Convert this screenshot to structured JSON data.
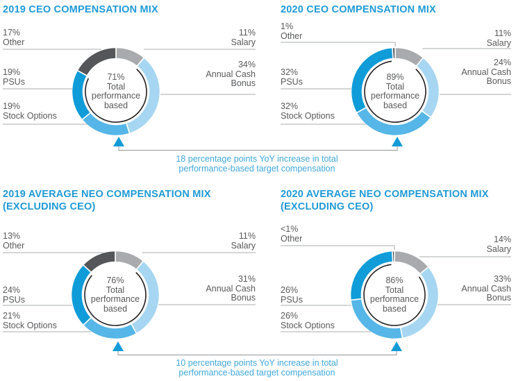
{
  "colors": {
    "background": "#ffffff",
    "title": "#1f9ad6",
    "label_text": "#58595b",
    "leader_line": "#a9abae",
    "bridge_line": "#939598",
    "bridge_text": "#41a8db",
    "arrow": "#149bd7",
    "inner_arc": "#231f20",
    "segment_gap": "#ffffff"
  },
  "segment_colors": {
    "salary": "#a8aaad",
    "annual_cash_bonus": "#a6d6f1",
    "stock_options": "#55b6e7",
    "psus": "#109cd8",
    "other": "#545659"
  },
  "chart_data": [
    {
      "type": "pie",
      "variant": "donut",
      "title": "2019 CEO COMPENSATION MIX",
      "title_lines": [
        "2019 CEO COMPENSATION MIX"
      ],
      "center_lines": [
        "71%",
        "Total",
        "performance",
        "based"
      ],
      "performance_based_pct": 71,
      "segments": [
        {
          "key": "salary",
          "pct_label": "11%",
          "value": 11,
          "label_lines": [
            "Salary"
          ]
        },
        {
          "key": "annual_cash_bonus",
          "pct_label": "34%",
          "value": 34,
          "label_lines": [
            "Annual Cash",
            "Bonus"
          ]
        },
        {
          "key": "stock_options",
          "pct_label": "19%",
          "value": 19,
          "label_lines": [
            "Stock Options"
          ]
        },
        {
          "key": "psus",
          "pct_label": "19%",
          "value": 19,
          "label_lines": [
            "PSUs"
          ]
        },
        {
          "key": "other",
          "pct_label": "17%",
          "value": 17,
          "label_lines": [
            "Other"
          ]
        }
      ]
    },
    {
      "type": "pie",
      "variant": "donut",
      "title": "2020 CEO COMPENSATION MIX",
      "title_lines": [
        "2020 CEO COMPENSATION MIX"
      ],
      "center_lines": [
        "89%",
        "Total",
        "performance",
        "based"
      ],
      "performance_based_pct": 89,
      "segments": [
        {
          "key": "salary",
          "pct_label": "11%",
          "value": 11,
          "label_lines": [
            "Salary"
          ]
        },
        {
          "key": "annual_cash_bonus",
          "pct_label": "24%",
          "value": 24,
          "label_lines": [
            "Annual Cash",
            "Bonus"
          ]
        },
        {
          "key": "stock_options",
          "pct_label": "32%",
          "value": 32,
          "label_lines": [
            "Stock Options"
          ]
        },
        {
          "key": "psus",
          "pct_label": "32%",
          "value": 32,
          "label_lines": [
            "PSUs"
          ]
        },
        {
          "key": "other",
          "pct_label": "1%",
          "value": 1,
          "label_lines": [
            "Other"
          ]
        }
      ]
    },
    {
      "type": "pie",
      "variant": "donut",
      "title": "2019 AVERAGE NEO COMPENSATION MIX (EXCLUDING CEO)",
      "title_lines": [
        "2019 AVERAGE NEO COMPENSATION MIX",
        "(EXCLUDING CEO)"
      ],
      "center_lines": [
        "76%",
        "Total",
        "performance",
        "based"
      ],
      "performance_based_pct": 76,
      "segments": [
        {
          "key": "salary",
          "pct_label": "11%",
          "value": 11,
          "label_lines": [
            "Salary"
          ]
        },
        {
          "key": "annual_cash_bonus",
          "pct_label": "31%",
          "value": 31,
          "label_lines": [
            "Annual Cash",
            "Bonus"
          ]
        },
        {
          "key": "stock_options",
          "pct_label": "21%",
          "value": 21,
          "label_lines": [
            "Stock Options"
          ]
        },
        {
          "key": "psus",
          "pct_label": "24%",
          "value": 24,
          "label_lines": [
            "PSUs"
          ]
        },
        {
          "key": "other",
          "pct_label": "13%",
          "value": 13,
          "label_lines": [
            "Other"
          ]
        }
      ]
    },
    {
      "type": "pie",
      "variant": "donut",
      "title": "2020 AVERAGE NEO COMPENSATION MIX (EXCLUDING CEO)",
      "title_lines": [
        "2020 AVERAGE NEO COMPENSATION MIX",
        "(EXCLUDING CEO)"
      ],
      "center_lines": [
        "86%",
        "Total",
        "performance",
        "based"
      ],
      "performance_based_pct": 86,
      "segments": [
        {
          "key": "salary",
          "pct_label": "14%",
          "value": 14,
          "label_lines": [
            "Salary"
          ]
        },
        {
          "key": "annual_cash_bonus",
          "pct_label": "33%",
          "value": 33,
          "label_lines": [
            "Annual Cash",
            "Bonus"
          ]
        },
        {
          "key": "stock_options",
          "pct_label": "26%",
          "value": 26,
          "label_lines": [
            "Stock Options"
          ]
        },
        {
          "key": "psus",
          "pct_label": "26%",
          "value": 26,
          "label_lines": [
            "PSUs"
          ]
        },
        {
          "key": "other",
          "pct_label": "<1%",
          "value": 0.8,
          "label_lines": [
            "Other"
          ]
        }
      ]
    }
  ],
  "bridges": [
    {
      "lines": [
        "18 percentage points YoY increase in total",
        "performance-based target compensation"
      ]
    },
    {
      "lines": [
        "10 percentage points YoY increase in total",
        "performance-based target compensation"
      ]
    }
  ]
}
